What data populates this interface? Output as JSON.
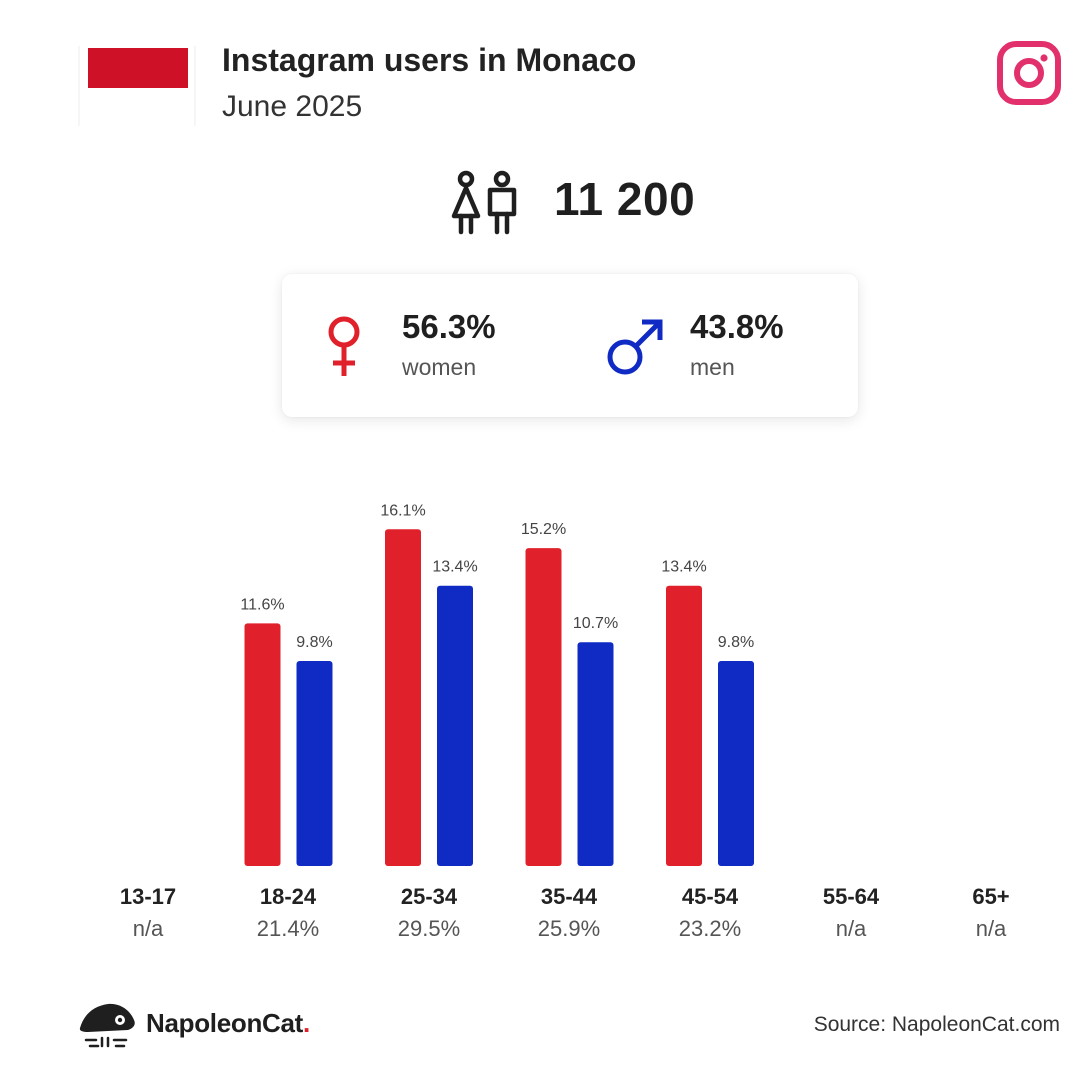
{
  "header": {
    "title": "Instagram users in Monaco",
    "subtitle": "June 2025"
  },
  "icons": {
    "flag": "monaco-flag",
    "platform": "instagram-icon",
    "people": "people-icon",
    "female": "female-symbol-icon",
    "male": "male-symbol-icon",
    "brand_logo": "napoleoncat-logo"
  },
  "colors": {
    "women": "#e0202a",
    "men": "#0f2bc4",
    "flag_red": "#ce1126",
    "instagram": "#e1306c"
  },
  "total": {
    "value": "11 200"
  },
  "gender": {
    "women": {
      "pct": "56.3%",
      "label": "women"
    },
    "men": {
      "pct": "43.8%",
      "label": "men"
    }
  },
  "chart_data": {
    "type": "bar",
    "categories": [
      "13-17",
      "18-24",
      "25-34",
      "35-44",
      "45-54",
      "55-64",
      "65+"
    ],
    "series": [
      {
        "name": "women",
        "values": [
          null,
          11.6,
          16.1,
          15.2,
          13.4,
          null,
          null
        ]
      },
      {
        "name": "men",
        "values": [
          null,
          9.8,
          13.4,
          10.7,
          9.8,
          null,
          null
        ]
      }
    ],
    "value_labels": [
      [
        "",
        "11.6%",
        "16.1%",
        "15.2%",
        "13.4%",
        "",
        ""
      ],
      [
        "",
        "9.8%",
        "13.4%",
        "10.7%",
        "9.8%",
        "",
        ""
      ]
    ],
    "category_shares": [
      "n/a",
      "21.4%",
      "29.5%",
      "25.9%",
      "23.2%",
      "n/a",
      "n/a"
    ],
    "ylim": [
      0,
      17.5
    ],
    "grid": false
  },
  "footer": {
    "brand_name": "NapoleonCat",
    "brand_dot": ".",
    "source": "Source: NapoleonCat.com"
  }
}
